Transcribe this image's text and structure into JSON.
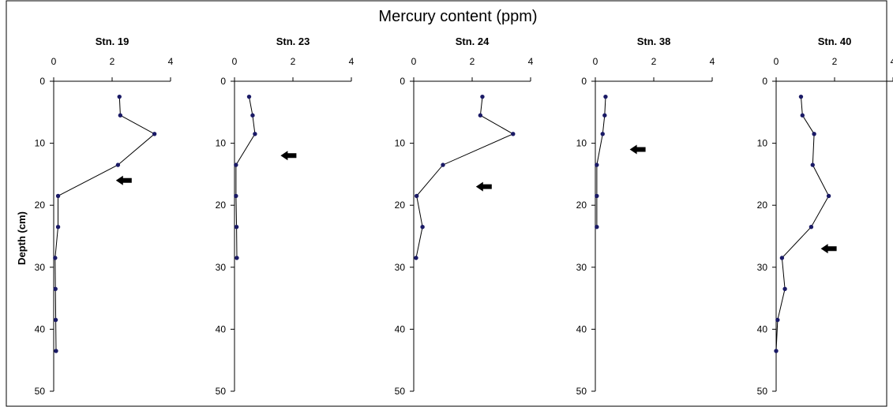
{
  "chart_data": {
    "type": "line",
    "title": "Mercury content (ppm)",
    "ylabel": "Depth (cm)",
    "xlim": [
      0,
      4
    ],
    "ylim": [
      0,
      50
    ],
    "y_inverted": true,
    "x_ticks": [
      "0",
      "2",
      "4"
    ],
    "y_ticks": [
      "0",
      "10",
      "20",
      "30",
      "40",
      "50"
    ],
    "grid": false,
    "panels": [
      {
        "title": "Stn. 19",
        "depth": [
          2.5,
          5.5,
          8.5,
          13.5,
          18.5,
          23.5,
          28.5,
          33.5,
          38.5,
          43.5
        ],
        "mercury": [
          2.25,
          2.28,
          3.45,
          2.2,
          0.15,
          0.15,
          0.05,
          0.06,
          0.07,
          0.08
        ],
        "arrow": {
          "x": 2.4,
          "depth": 16
        }
      },
      {
        "title": "Stn. 23",
        "depth": [
          2.5,
          5.5,
          8.5,
          13.5,
          18.5,
          23.5,
          28.5
        ],
        "mercury": [
          0.5,
          0.62,
          0.7,
          0.05,
          0.05,
          0.07,
          0.08
        ],
        "arrow": {
          "x": 1.85,
          "depth": 12
        }
      },
      {
        "title": "Stn. 24",
        "depth": [
          2.5,
          5.5,
          8.5,
          13.5,
          18.5,
          23.5,
          28.5
        ],
        "mercury": [
          2.35,
          2.28,
          3.4,
          1.0,
          0.1,
          0.3,
          0.08
        ],
        "arrow": {
          "x": 2.4,
          "depth": 17
        }
      },
      {
        "title": "Stn. 38",
        "depth": [
          2.5,
          5.5,
          8.5,
          13.5,
          18.5,
          23.5
        ],
        "mercury": [
          0.35,
          0.32,
          0.25,
          0.05,
          0.05,
          0.05
        ],
        "arrow": {
          "x": 1.45,
          "depth": 11
        }
      },
      {
        "title": "Stn. 40",
        "depth": [
          2.5,
          5.5,
          8.5,
          13.5,
          18.5,
          23.5,
          28.5,
          33.5,
          38.5,
          43.5
        ],
        "mercury": [
          0.85,
          0.9,
          1.3,
          1.25,
          1.8,
          1.2,
          0.2,
          0.3,
          0.05,
          0.0
        ],
        "arrow": {
          "x": 1.8,
          "depth": 27
        }
      }
    ]
  },
  "colors": {
    "line": "#000000",
    "marker": "#1a1a66",
    "axis": "#000000",
    "frame": "#000000"
  }
}
